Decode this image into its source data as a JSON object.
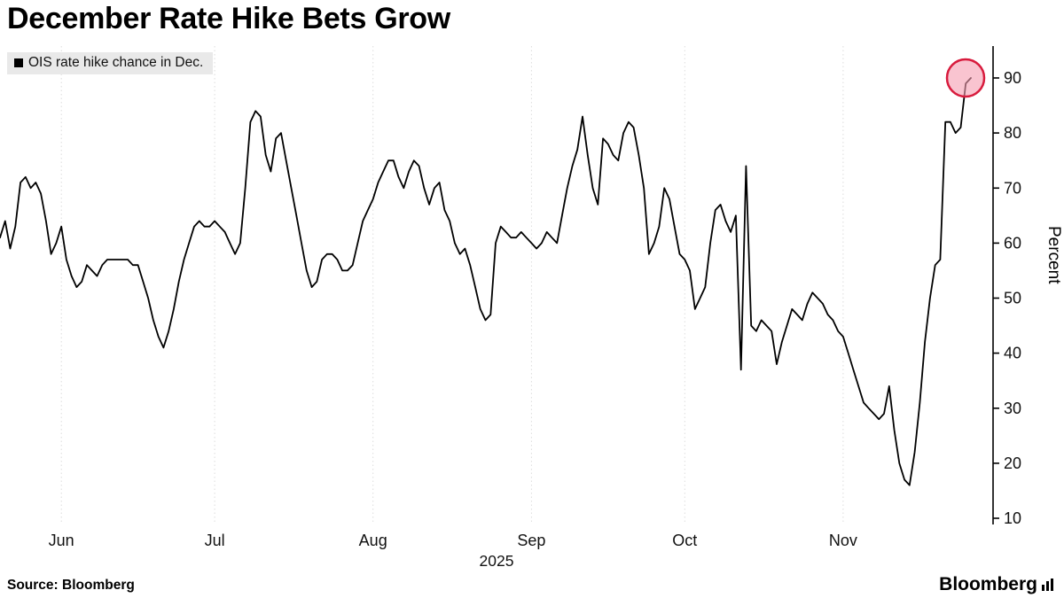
{
  "source": "Source: Bloomberg",
  "brand": "Bloomberg",
  "chart_data": {
    "type": "line",
    "title": "December Rate Hike Bets Grow",
    "series_name": "OIS rate hike chance in Dec.",
    "ylabel": "Percent",
    "x_axis_year": "2025",
    "yticks": [
      10,
      20,
      30,
      40,
      50,
      60,
      70,
      80,
      90
    ],
    "ylim": [
      8,
      95
    ],
    "line_color": "#000000",
    "grid_color": "#dcdcdc",
    "highlight": {
      "fill": "#f59db0",
      "stroke": "#d81b3d",
      "note": "latest value circled"
    },
    "months": [
      {
        "label": "Jun",
        "index": 12
      },
      {
        "label": "Jul",
        "index": 42
      },
      {
        "label": "Aug",
        "index": 73
      },
      {
        "label": "Sep",
        "index": 104
      },
      {
        "label": "Oct",
        "index": 134
      },
      {
        "label": "Nov",
        "index": 165
      }
    ],
    "values": [
      61,
      64,
      59,
      63,
      71,
      72,
      70,
      71,
      69,
      64,
      58,
      60,
      63,
      57,
      54,
      52,
      53,
      56,
      55,
      54,
      56,
      57,
      57,
      57,
      57,
      57,
      56,
      56,
      53,
      50,
      46,
      43,
      41,
      44,
      48,
      53,
      57,
      60,
      63,
      64,
      63,
      63,
      64,
      63,
      62,
      60,
      58,
      60,
      70,
      82,
      84,
      83,
      76,
      73,
      79,
      80,
      75,
      70,
      65,
      60,
      55,
      52,
      53,
      57,
      58,
      58,
      57,
      55,
      55,
      56,
      60,
      64,
      66,
      68,
      71,
      73,
      75,
      75,
      72,
      70,
      73,
      75,
      74,
      70,
      67,
      70,
      71,
      66,
      64,
      60,
      58,
      59,
      56,
      52,
      48,
      46,
      47,
      60,
      63,
      62,
      61,
      61,
      62,
      61,
      60,
      59,
      60,
      62,
      61,
      60,
      65,
      70,
      74,
      77,
      83,
      76,
      70,
      67,
      79,
      78,
      76,
      75,
      80,
      82,
      81,
      76,
      70,
      58,
      60,
      63,
      70,
      68,
      63,
      58,
      57,
      55,
      48,
      50,
      52,
      60,
      66,
      67,
      64,
      62,
      65,
      37,
      74,
      45,
      44,
      46,
      45,
      44,
      38,
      42,
      45,
      48,
      47,
      46,
      49,
      51,
      50,
      49,
      47,
      46,
      44,
      43,
      40,
      37,
      34,
      31,
      30,
      29,
      28,
      29,
      34,
      26,
      20,
      17,
      16,
      22,
      31,
      42,
      50,
      56,
      57,
      82,
      82,
      80,
      81,
      89,
      90
    ]
  }
}
